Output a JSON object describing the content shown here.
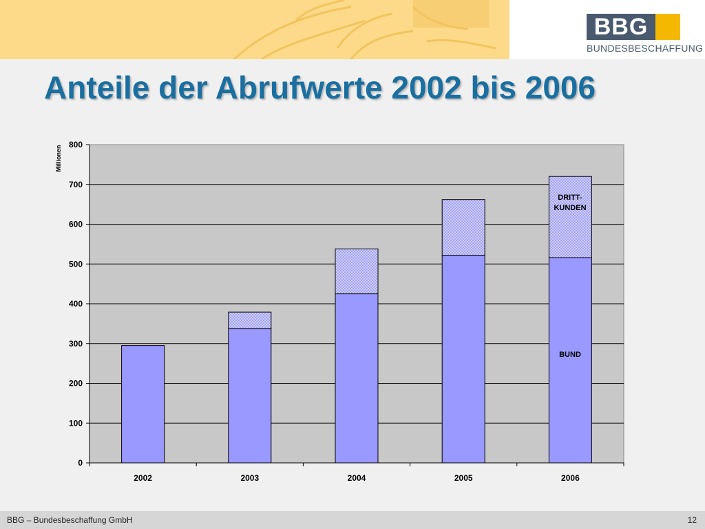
{
  "header": {
    "logo_text": "BBG",
    "logo_subtitle": "BUNDESBESCHAFFUNG",
    "colors": {
      "band": "#fdd98a",
      "logo_dark": "#4a5a6e",
      "logo_accent": "#f5b800"
    }
  },
  "page": {
    "title": "Anteile der Abrufwerte 2002 bis 2006"
  },
  "chart_data": {
    "type": "bar",
    "stacked": true,
    "categories": [
      "2002",
      "2003",
      "2004",
      "2005",
      "2006"
    ],
    "series": [
      {
        "name": "BUND",
        "values": [
          295,
          338,
          425,
          522,
          516
        ],
        "color": "#9999ff"
      },
      {
        "name": "DRITT-KUNDEN",
        "values": [
          0,
          41,
          113,
          140,
          204
        ],
        "color": "#ccccff",
        "pattern": "dotted"
      }
    ],
    "ylabel": "Millionen",
    "ylim": [
      0,
      800
    ],
    "yticks": [
      0,
      100,
      200,
      300,
      400,
      500,
      600,
      700,
      800
    ],
    "grid": true,
    "annotations": {
      "top_series_label_lines": [
        "DRITT-",
        "KUNDEN"
      ],
      "bottom_series_label": "BUND"
    },
    "plot_background": "#c8c8c8"
  },
  "footer": {
    "text": "BBG – Bundesbeschaffung GmbH",
    "page_number": "12"
  }
}
